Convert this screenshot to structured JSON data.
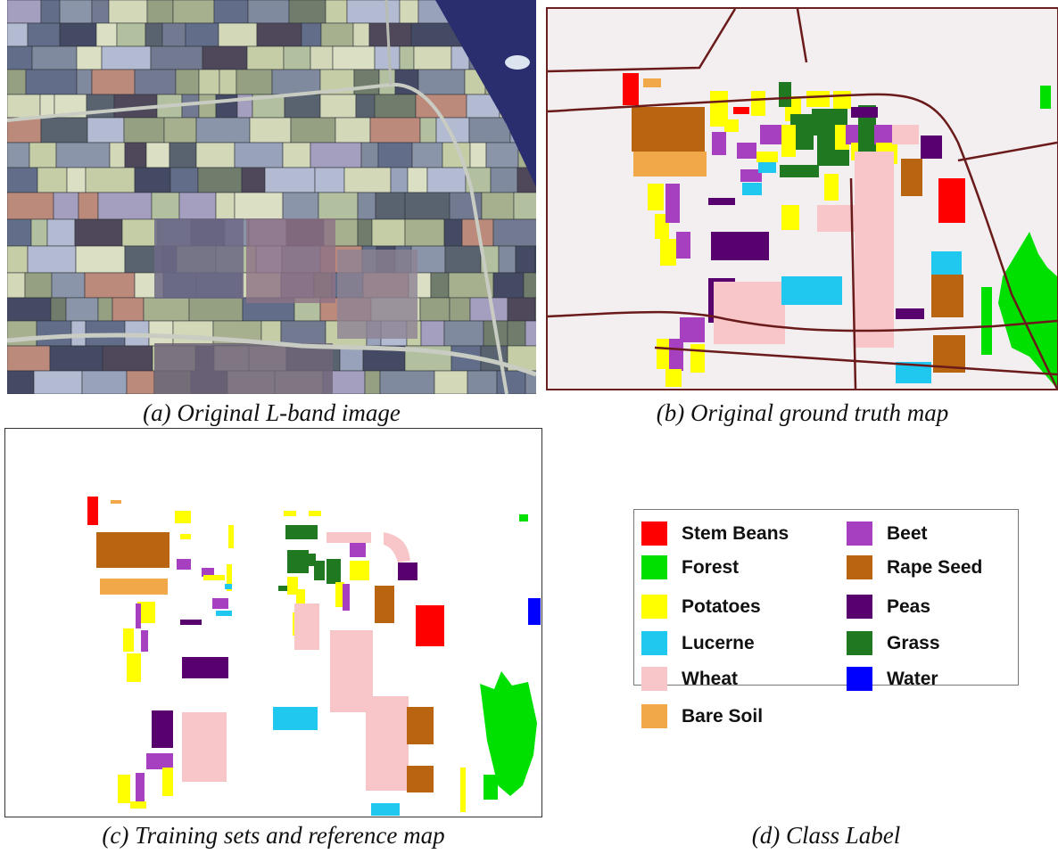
{
  "panels": [
    {
      "id": "a",
      "caption": "(a) Original L-band image"
    },
    {
      "id": "b",
      "caption": "(b) Original ground truth map"
    },
    {
      "id": "c",
      "caption": "(c) Training sets and reference map"
    },
    {
      "id": "d",
      "caption": "(d) Class Label"
    }
  ],
  "legend": {
    "items": [
      {
        "label": "Stem Beans",
        "color": "#ff0000"
      },
      {
        "label": "Forest",
        "color": "#00e000"
      },
      {
        "label": "Potatoes",
        "color": "#ffff00"
      },
      {
        "label": "Lucerne",
        "color": "#20c8f0"
      },
      {
        "label": "Wheat",
        "color": "#f8c6c8"
      },
      {
        "label": "Bare Soil",
        "color": "#f0a848"
      },
      {
        "label": "Beet",
        "color": "#a640c0"
      },
      {
        "label": "Rape Seed",
        "color": "#b86410"
      },
      {
        "label": "Peas",
        "color": "#58006e"
      },
      {
        "label": "Grass",
        "color": "#207820"
      },
      {
        "label": "Water",
        "color": "#0000ff"
      }
    ]
  }
}
